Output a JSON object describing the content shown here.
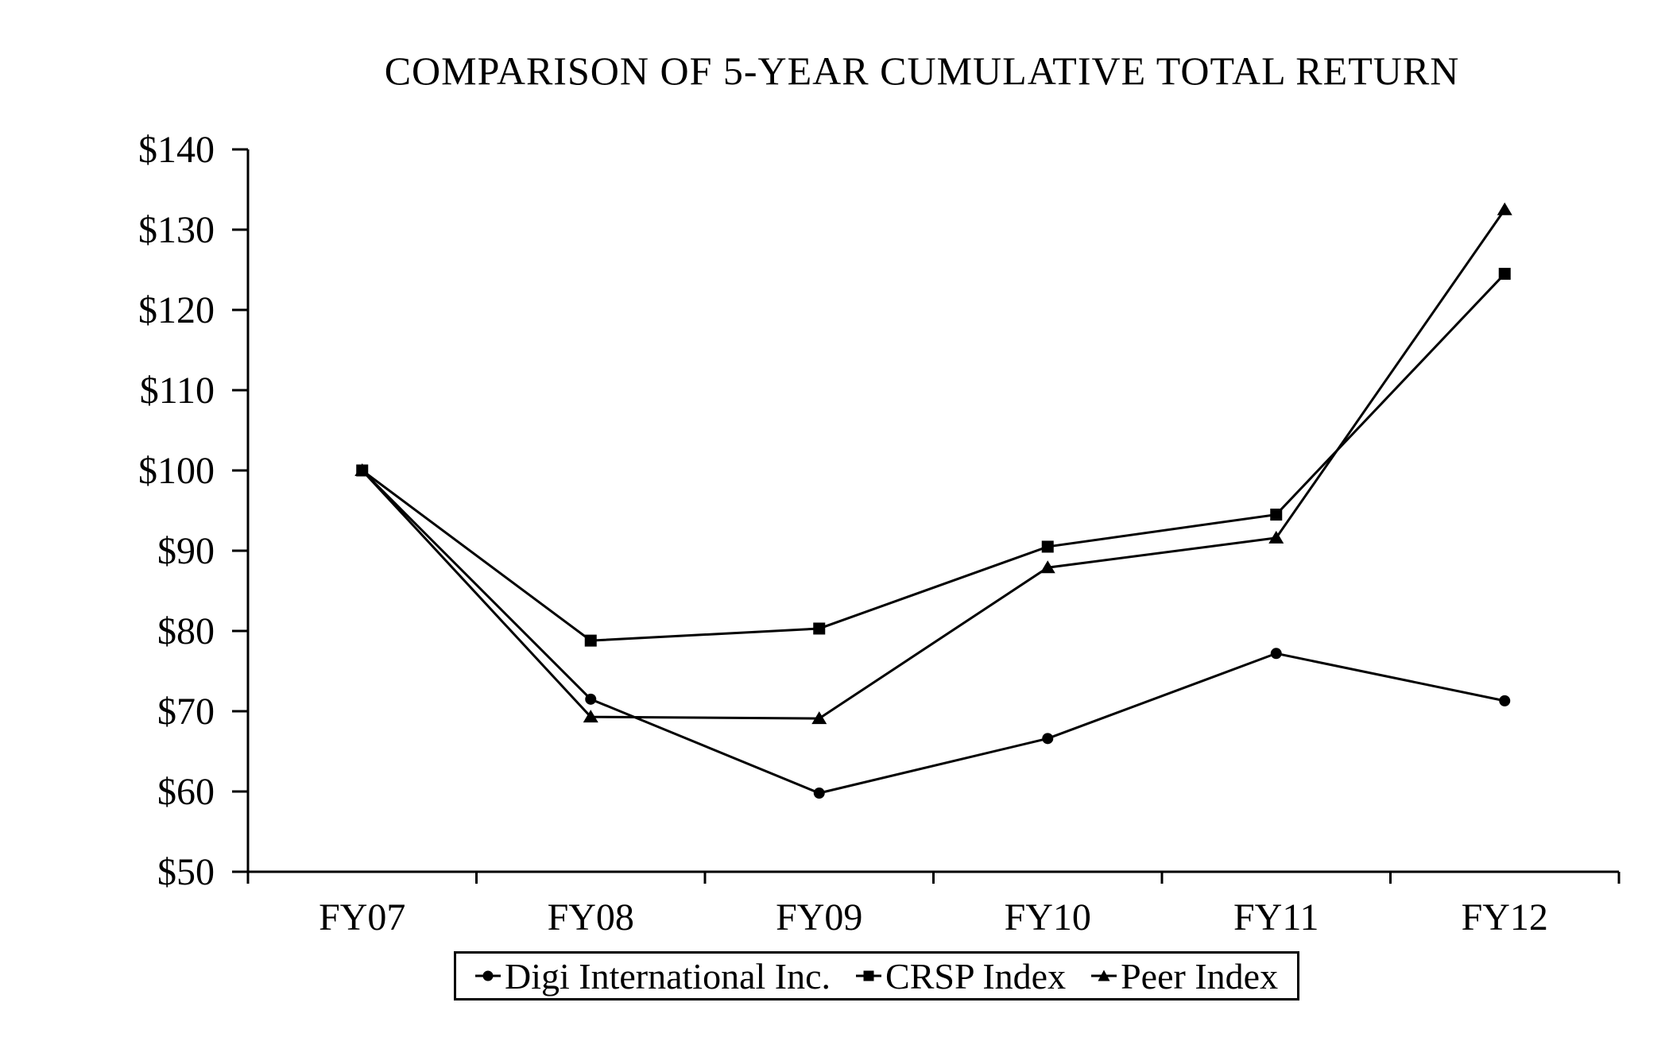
{
  "title": "COMPARISON OF 5-YEAR CUMULATIVE TOTAL RETURN",
  "colors": {
    "foreground": "#000000",
    "background": "#ffffff"
  },
  "chart_data": {
    "type": "line",
    "title": "COMPARISON OF 5-YEAR CUMULATIVE TOTAL RETURN",
    "categories": [
      "FY07",
      "FY08",
      "FY09",
      "FY10",
      "FY11",
      "FY12"
    ],
    "series": [
      {
        "name": "Digi International Inc.",
        "marker": "circle",
        "values": [
          100,
          71.5,
          59.8,
          66.6,
          77.2,
          71.3
        ]
      },
      {
        "name": "CRSP Index",
        "marker": "square",
        "values": [
          100,
          78.8,
          80.3,
          90.5,
          94.5,
          124.5
        ]
      },
      {
        "name": "Peer Index",
        "marker": "triangle",
        "values": [
          100,
          69.3,
          69.1,
          87.9,
          91.6,
          132.5
        ]
      }
    ],
    "xlabel": "",
    "ylabel": "",
    "ylim": [
      50,
      140
    ],
    "y_tick_values": [
      140,
      130,
      120,
      110,
      100,
      90,
      80,
      70,
      60,
      50
    ],
    "y_tick_labels": [
      "$140",
      "$130",
      "$120",
      "$110",
      "$100",
      "$90",
      "$80",
      "$70",
      "$60",
      "$50"
    ],
    "grid": false,
    "legend_position": "bottom",
    "line_color": "#000000"
  }
}
